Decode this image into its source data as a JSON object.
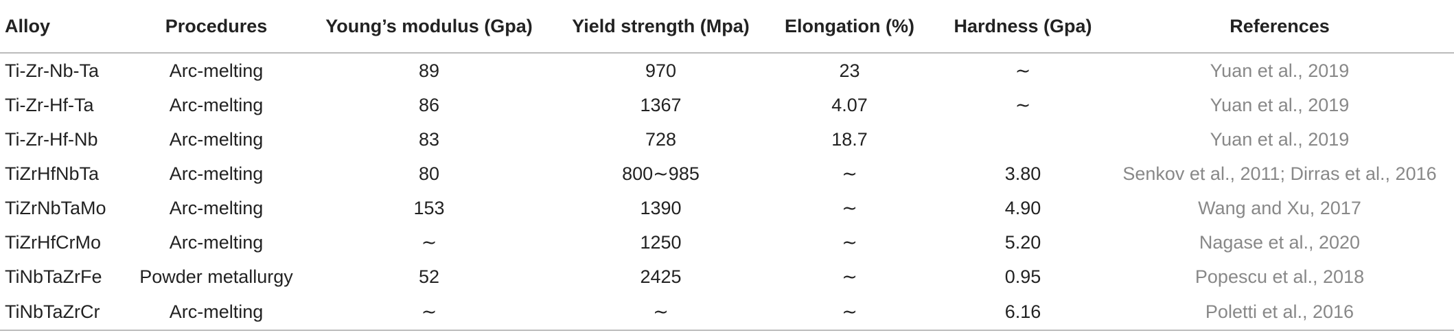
{
  "table": {
    "header": [
      "Alloy",
      "Procedures",
      "Young’s modulus (Gpa)",
      "Yield strength (Mpa)",
      "Elongation (%)",
      "Hardness (Gpa)",
      "References"
    ],
    "rows": [
      [
        "Ti-Zr-Nb-Ta",
        "Arc-melting",
        "89",
        "970",
        "23",
        "∼",
        "Yuan et al., 2019"
      ],
      [
        "Ti-Zr-Hf-Ta",
        "Arc-melting",
        "86",
        "1367",
        "4.07",
        "∼",
        "Yuan et al., 2019"
      ],
      [
        "Ti-Zr-Hf-Nb",
        "Arc-melting",
        "83",
        "728",
        "18.7",
        null,
        "Yuan et al., 2019"
      ],
      [
        "TiZrHfNbTa",
        "Arc-melting",
        "80",
        "800∼985",
        "∼",
        "3.80",
        "Senkov et al., 2011; Dirras et al., 2016"
      ],
      [
        "TiZrNbTaMo",
        "Arc-melting",
        "153",
        "1390",
        "∼",
        "4.90",
        "Wang and Xu, 2017"
      ],
      [
        "TiZrHfCrMo",
        "Arc-melting",
        "∼",
        "1250",
        "∼",
        "5.20",
        "Nagase et al., 2020"
      ],
      [
        "TiNbTaZrFe",
        "Powder metallurgy",
        "52",
        "2425",
        "∼",
        "0.95",
        "Popescu et al., 2018"
      ],
      [
        "TiNbTaZrCr",
        "Arc-melting",
        "∼",
        "∼",
        "∼",
        "6.16",
        "Poletti et al., 2016"
      ]
    ]
  }
}
